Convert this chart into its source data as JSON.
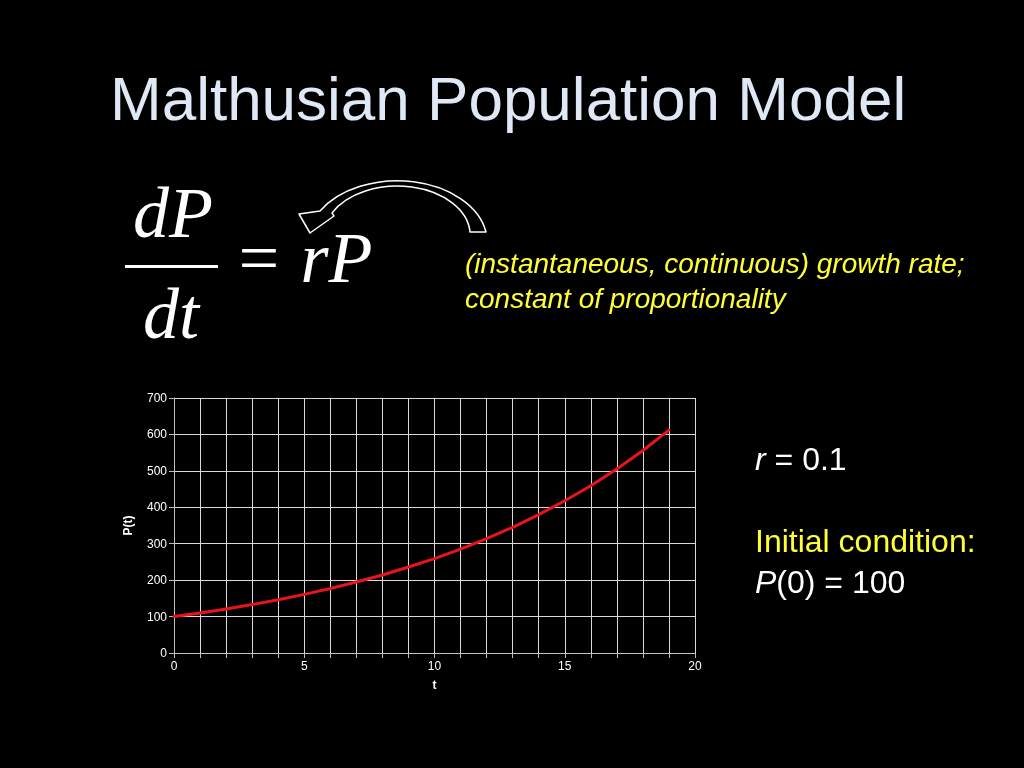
{
  "chart_data": {
    "type": "line",
    "title": "Malthusian Population Model",
    "xlabel": "t",
    "ylabel": "P(t)",
    "x": [
      0,
      1,
      2,
      3,
      4,
      5,
      6,
      7,
      8,
      9,
      10,
      11,
      12,
      13,
      14,
      15,
      16,
      17,
      18,
      19
    ],
    "values": [
      100,
      110,
      121,
      133,
      146,
      161,
      177,
      195,
      214,
      236,
      259,
      285,
      314,
      345,
      380,
      418,
      459,
      505,
      556,
      612
    ],
    "color": "#e8141c",
    "xlim": [
      0,
      20
    ],
    "xticks": [
      0,
      {
        "value": 1,
        "label": null
      },
      {
        "value": 2,
        "label": null
      },
      {
        "value": 3,
        "label": null
      },
      {
        "value": 4,
        "label": null
      },
      5,
      {
        "value": 6,
        "label": null
      },
      {
        "value": 7,
        "label": null
      },
      {
        "value": 8,
        "label": null
      },
      {
        "value": 9,
        "label": null
      },
      10,
      {
        "value": 11,
        "label": null
      },
      {
        "value": 12,
        "label": null
      },
      {
        "value": 13,
        "label": null
      },
      {
        "value": 14,
        "label": null
      },
      15,
      {
        "value": 16,
        "label": null
      },
      {
        "value": 17,
        "label": null
      },
      {
        "value": 18,
        "label": null
      },
      {
        "value": 19,
        "label": null
      },
      20
    ],
    "ylim": [
      0,
      700
    ],
    "yticks": [
      0,
      100,
      200,
      300,
      400,
      500,
      600,
      700
    ],
    "grid": true,
    "annotations": [
      "dP",
      "dt",
      "= rP",
      "(instantaneous, continuous) growth rate; constant of proportionality",
      "r = 0.1",
      "Initial condition:",
      "P(0) = 100"
    ]
  }
}
